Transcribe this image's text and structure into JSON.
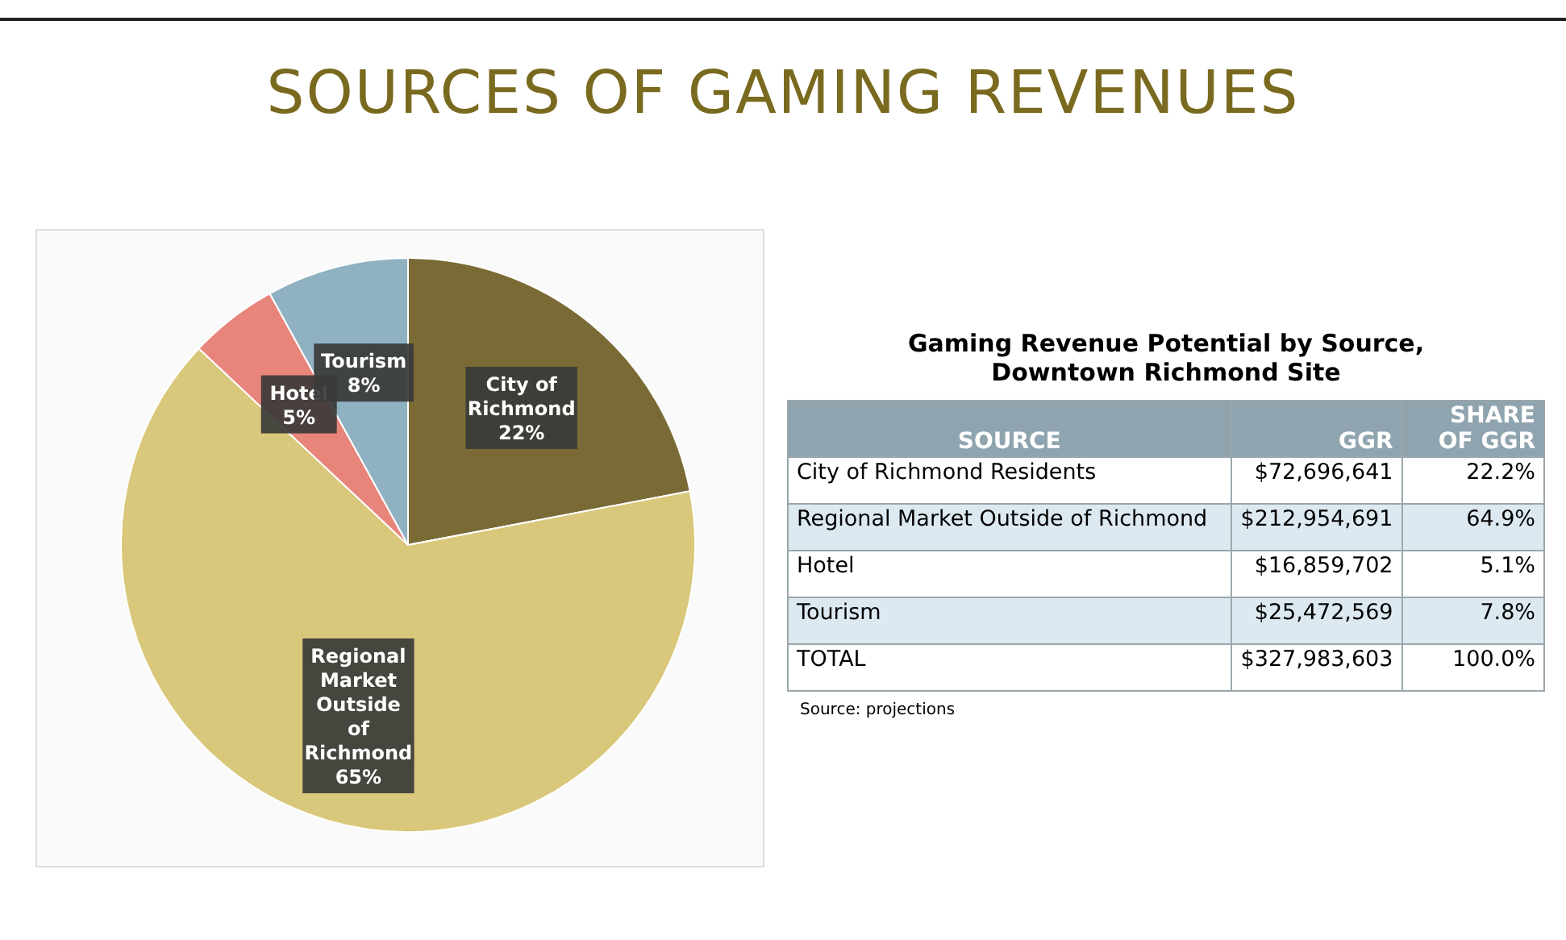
{
  "chart_data": [
    {
      "type": "pie",
      "title": "SOURCES OF GAMING REVENUES",
      "categories": [
        "City of Richmond",
        "Regional Market Outside of Richmond",
        "Hotel",
        "Tourism"
      ],
      "values": [
        22,
        65,
        5,
        8
      ],
      "value_labels": [
        "22%",
        "65%",
        "5%",
        "8%"
      ],
      "colors": [
        "#7a6a35",
        "#d9c87b",
        "#e8857b",
        "#8fb1c2"
      ]
    },
    {
      "type": "other",
      "title": "Gaming Revenue Potential by Source, Downtown Richmond Site",
      "xlabel": "SOURCE",
      "categories": [
        "City of Richmond Residents",
        "Regional Market Outside of Richmond",
        "Hotel",
        "Tourism",
        "TOTAL"
      ],
      "series": [
        {
          "name": "GGR",
          "values": [
            72696641,
            212954691,
            16859702,
            25472569,
            327983603
          ],
          "value_labels": [
            "$72,696,641",
            "$212,954,691",
            "$16,859,702",
            "$25,472,569",
            "$327,983,603"
          ],
          "colors": [
            "#ffffff",
            "#dde9f0",
            "#ffffff",
            "#dde9f0",
            "#ffffff"
          ]
        },
        {
          "name": "SHARE OF GGR",
          "values": [
            22.2,
            64.9,
            5.1,
            7.8,
            100.0
          ],
          "value_labels": [
            "22.2%",
            "64.9%",
            "5.1%",
            "7.8%",
            "100.0%"
          ],
          "colors": [
            "#ffffff",
            "#dde9f0",
            "#ffffff",
            "#dde9f0",
            "#ffffff"
          ]
        }
      ],
      "annotations": [
        "Source: projections"
      ]
    }
  ]
}
